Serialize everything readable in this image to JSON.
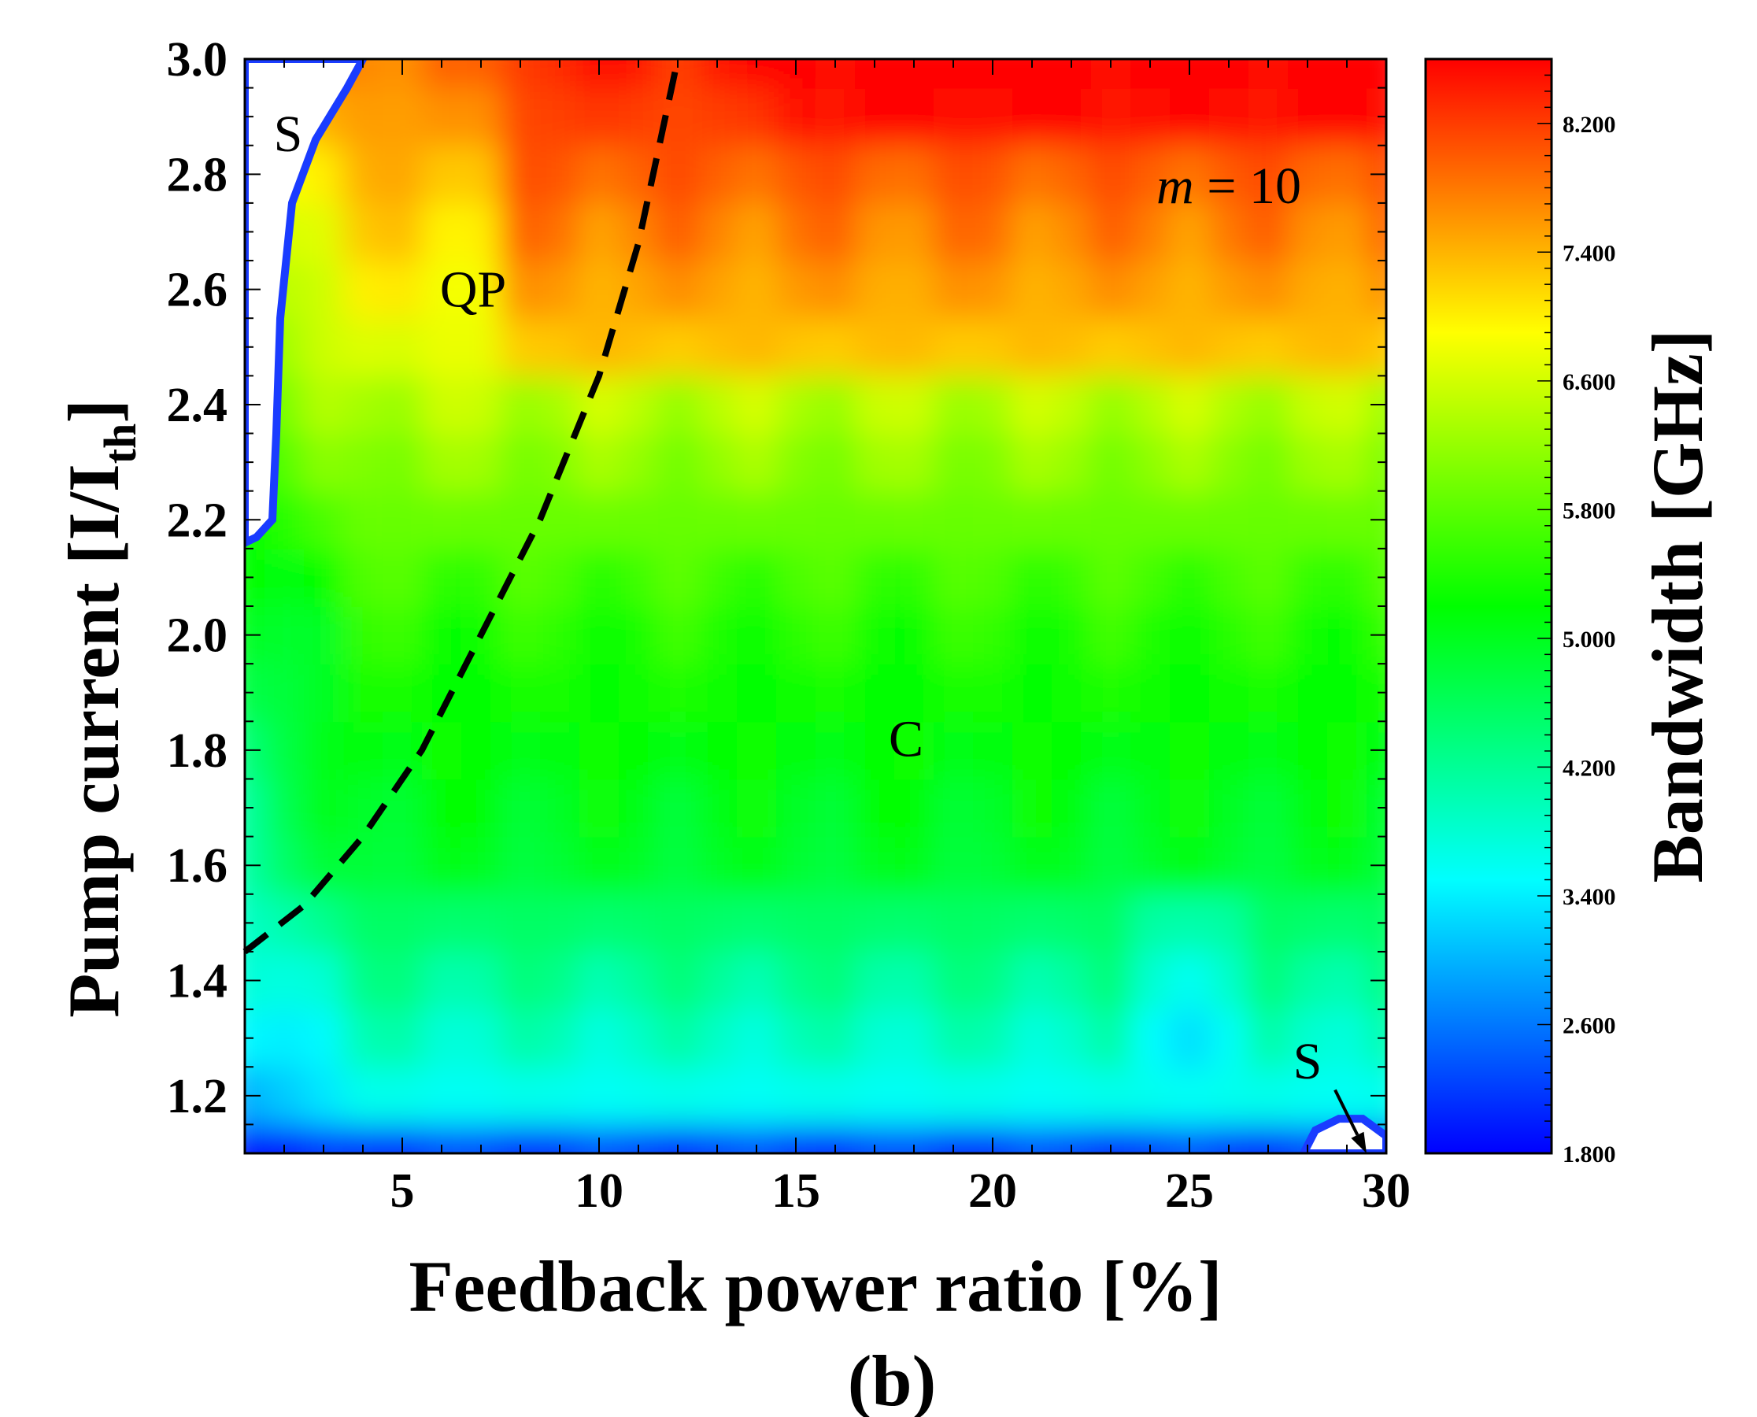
{
  "chart_data": {
    "type": "heatmap",
    "title": "",
    "subtitle": "(b)",
    "xlabel": "Feedback power ratio [%]",
    "ylabel": "Pump current [I/I",
    "ylabel_sub": "th",
    "ylabel_close": "]",
    "xlim": [
      1,
      30
    ],
    "ylim": [
      1.1,
      3.0
    ],
    "xticks": [
      5,
      10,
      15,
      20,
      25,
      30
    ],
    "xtick_labels": [
      "5",
      "10",
      "15",
      "20",
      "25",
      "30"
    ],
    "yticks": [
      1.2,
      1.4,
      1.6,
      1.8,
      2.0,
      2.2,
      2.4,
      2.6,
      2.8,
      3.0
    ],
    "ytick_labels": [
      "1.2",
      "1.4",
      "1.6",
      "1.8",
      "2.0",
      "2.2",
      "2.4",
      "2.6",
      "2.8",
      "3.0"
    ],
    "colorbar": {
      "label": "Bandwidth [GHz]",
      "range": [
        1.8,
        8.6
      ],
      "ticks": [
        1.8,
        2.6,
        3.4,
        4.2,
        5.0,
        5.8,
        6.6,
        7.4,
        8.2
      ],
      "tick_labels": [
        "1.800",
        "2.600",
        "3.400",
        "4.200",
        "5.000",
        "5.800",
        "6.600",
        "7.400",
        "8.200"
      ],
      "colors": [
        "#0000ff",
        "#00ffff",
        "#00ff00",
        "#ffff00",
        "#ff0000"
      ]
    },
    "annotations": [
      {
        "text": "S",
        "x": 2.1,
        "y": 2.87
      },
      {
        "text": "QP",
        "x": 6.8,
        "y": 2.6
      },
      {
        "text": "m = 10",
        "x": 26.0,
        "y": 2.78,
        "italic_part": "m",
        "rest": " = 10"
      },
      {
        "text": "C",
        "x": 17.8,
        "y": 1.82
      },
      {
        "text": "S",
        "x": 28.0,
        "y": 1.26
      }
    ],
    "boundary_line": {
      "style": "dashed",
      "points": [
        [
          1,
          1.45
        ],
        [
          2.5,
          1.53
        ],
        [
          4,
          1.65
        ],
        [
          5.5,
          1.8
        ],
        [
          7,
          2.0
        ],
        [
          8.5,
          2.2
        ],
        [
          10,
          2.45
        ],
        [
          11,
          2.68
        ],
        [
          12,
          3.0
        ]
      ]
    },
    "arrow": {
      "from": [
        28.7,
        1.21
      ],
      "to": [
        29.5,
        1.1
      ]
    },
    "stable_regions": [
      {
        "name": "S",
        "boundary": [
          [
            1,
            3.0
          ],
          [
            4.0,
            3.0
          ],
          [
            3.6,
            2.95
          ],
          [
            2.8,
            2.86
          ],
          [
            2.2,
            2.75
          ],
          [
            1.9,
            2.55
          ],
          [
            1.8,
            2.35
          ],
          [
            1.7,
            2.2
          ],
          [
            1.3,
            2.17
          ],
          [
            1,
            2.16
          ]
        ]
      },
      {
        "name": "S",
        "boundary": [
          [
            27.9,
            1.1
          ],
          [
            28.2,
            1.14
          ],
          [
            28.8,
            1.16
          ],
          [
            29.4,
            1.16
          ],
          [
            30,
            1.13
          ],
          [
            30,
            1.1
          ]
        ]
      }
    ],
    "bandwidth_grid": {
      "x": [
        1,
        2,
        3,
        4,
        5,
        6,
        7,
        8,
        9,
        10,
        11,
        12,
        13,
        14,
        15,
        16,
        17,
        18,
        19,
        20,
        21,
        22,
        23,
        24,
        25,
        26,
        27,
        28,
        29,
        30
      ],
      "y": [
        1.1,
        1.2,
        1.3,
        1.4,
        1.5,
        1.6,
        1.7,
        1.8,
        1.9,
        2.0,
        2.1,
        2.2,
        2.3,
        2.4,
        2.5,
        2.6,
        2.7,
        2.8,
        2.9,
        3.0
      ],
      "z_rule": "bandwidth in GHz estimated from colour map"
    }
  }
}
